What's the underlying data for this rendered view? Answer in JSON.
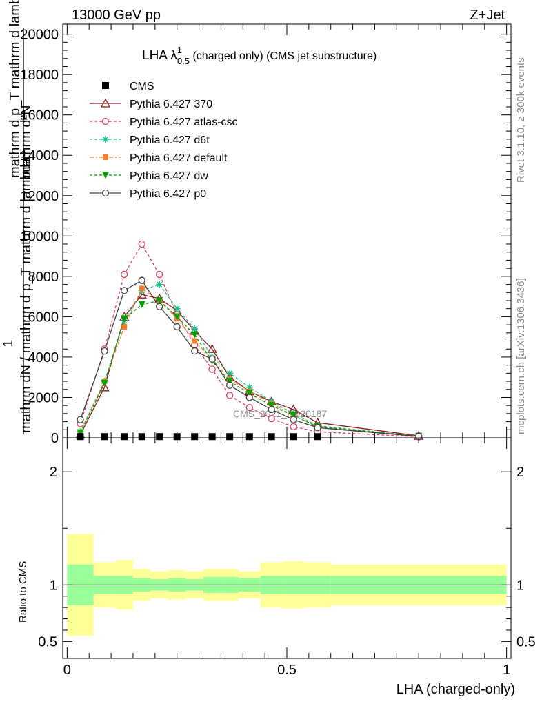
{
  "header": {
    "left": "13000 GeV pp",
    "right": "Z+Jet"
  },
  "side_labels": {
    "rivet": "Rivet 3.1.10, ≥ 300k events",
    "mcplots": "mcplots.cern.ch [arXiv:1306.3436]"
  },
  "chart_data": [
    {
      "type": "line",
      "title_main": "LHA λ",
      "title_sup": "1",
      "title_sub": "0.5",
      "title_rest": " (charged only) (CMS jet substructure)",
      "ylabel_top": "mathrm d²N",
      "ylabel_top2": "mathrm d p_T mathrm d lambda",
      "ylabel_one": "1",
      "ylabel_bottom": "mathrm dN / mathrm d p_T mathrm d lambda",
      "watermark": "CMS_2021_I1920187",
      "xlim": [
        0,
        1
      ],
      "ylim": [
        0,
        20500
      ],
      "ytick_labels": [
        "0",
        "2000",
        "4000",
        "6000",
        "8000",
        "10000",
        "12000",
        "14000",
        "16000",
        "18000",
        "20000"
      ],
      "ytick_values": [
        0,
        2000,
        4000,
        6000,
        8000,
        10000,
        12000,
        14000,
        16000,
        18000,
        20000
      ],
      "legend_position": "top-left",
      "x": [
        0.03,
        0.085,
        0.13,
        0.17,
        0.21,
        0.25,
        0.29,
        0.33,
        0.37,
        0.415,
        0.465,
        0.515,
        0.57,
        0.8
      ],
      "series": [
        {
          "name": "CMS",
          "color": "#000000",
          "marker": "square",
          "dash": "",
          "values": [
            60,
            60,
            60,
            60,
            60,
            60,
            60,
            60,
            60,
            60,
            60,
            60,
            60,
            null
          ]
        },
        {
          "name": "Pythia 6.427 370",
          "color": "#8b1a1a",
          "marker": "triangle-open",
          "dash": "",
          "values": [
            150,
            2500,
            6000,
            7100,
            6900,
            6300,
            5300,
            4400,
            3000,
            2300,
            1800,
            1400,
            750,
            100
          ]
        },
        {
          "name": "Pythia 6.427 atlas-csc",
          "color": "#e23b5a",
          "marker": "circle-open",
          "dash": "4,3",
          "values": [
            700,
            4400,
            8100,
            9600,
            8100,
            6100,
            4600,
            3400,
            2100,
            1500,
            950,
            550,
            300,
            50
          ]
        },
        {
          "name": "Pythia 6.427 d6t",
          "color": "#1fbf8f",
          "marker": "star",
          "dash": "4,3",
          "values": [
            300,
            2800,
            5800,
            7300,
            7600,
            6400,
            5400,
            4000,
            3200,
            2500,
            1800,
            1200,
            600,
            80
          ]
        },
        {
          "name": "Pythia 6.427 default",
          "color": "#f08030",
          "marker": "square-filled",
          "dash": "6,3,2,3",
          "values": [
            250,
            2800,
            5500,
            7400,
            6800,
            5900,
            4800,
            3900,
            2900,
            2300,
            1700,
            1100,
            550,
            80
          ]
        },
        {
          "name": "Pythia 6.427 dw",
          "color": "#00a000",
          "marker": "triangle-down",
          "dash": "4,3",
          "values": [
            250,
            2700,
            5900,
            6600,
            6800,
            6000,
            5100,
            3800,
            2800,
            2200,
            1600,
            1100,
            550,
            80
          ]
        },
        {
          "name": "Pythia 6.427 p0",
          "color": "#404040",
          "marker": "circle-open",
          "dash": "",
          "values": [
            900,
            4300,
            7300,
            7800,
            6500,
            5500,
            4300,
            3900,
            2600,
            2000,
            1400,
            900,
            500,
            70
          ]
        }
      ]
    },
    {
      "type": "area",
      "ylabel": "Ratio to CMS",
      "xlabel": "LHA (charged-only)",
      "xlim": [
        -0.01,
        1.01
      ],
      "ylim": [
        0.35,
        2.3
      ],
      "xtick_labels": [
        "0",
        "0.5",
        "1"
      ],
      "xtick_values": [
        0,
        0.5,
        1
      ],
      "ytick_labels": [
        "0.5",
        "1",
        "2"
      ],
      "ytick_values": [
        0.5,
        1,
        2
      ],
      "bin_edges": [
        0,
        0.06,
        0.11,
        0.15,
        0.19,
        0.23,
        0.27,
        0.31,
        0.35,
        0.39,
        0.44,
        0.49,
        0.54,
        0.6,
        1.0
      ],
      "band_inner": [
        [
          0.82,
          1.18
        ],
        [
          0.92,
          1.08
        ],
        [
          0.92,
          1.08
        ],
        [
          0.94,
          1.06
        ],
        [
          0.95,
          1.05
        ],
        [
          0.94,
          1.06
        ],
        [
          0.95,
          1.05
        ],
        [
          0.93,
          1.07
        ],
        [
          0.93,
          1.07
        ],
        [
          0.94,
          1.06
        ],
        [
          0.92,
          1.08
        ],
        [
          0.92,
          1.08
        ],
        [
          0.92,
          1.08
        ],
        [
          0.92,
          1.08
        ]
      ],
      "band_outer": [
        [
          0.55,
          1.45
        ],
        [
          0.8,
          1.2
        ],
        [
          0.78,
          1.22
        ],
        [
          0.86,
          1.14
        ],
        [
          0.88,
          1.12
        ],
        [
          0.87,
          1.13
        ],
        [
          0.88,
          1.12
        ],
        [
          0.86,
          1.14
        ],
        [
          0.86,
          1.14
        ],
        [
          0.88,
          1.12
        ],
        [
          0.8,
          1.2
        ],
        [
          0.79,
          1.21
        ],
        [
          0.8,
          1.2
        ],
        [
          0.82,
          1.18
        ]
      ],
      "band_colors": {
        "inner": "#99ff99",
        "outer": "#ffff99"
      }
    }
  ]
}
